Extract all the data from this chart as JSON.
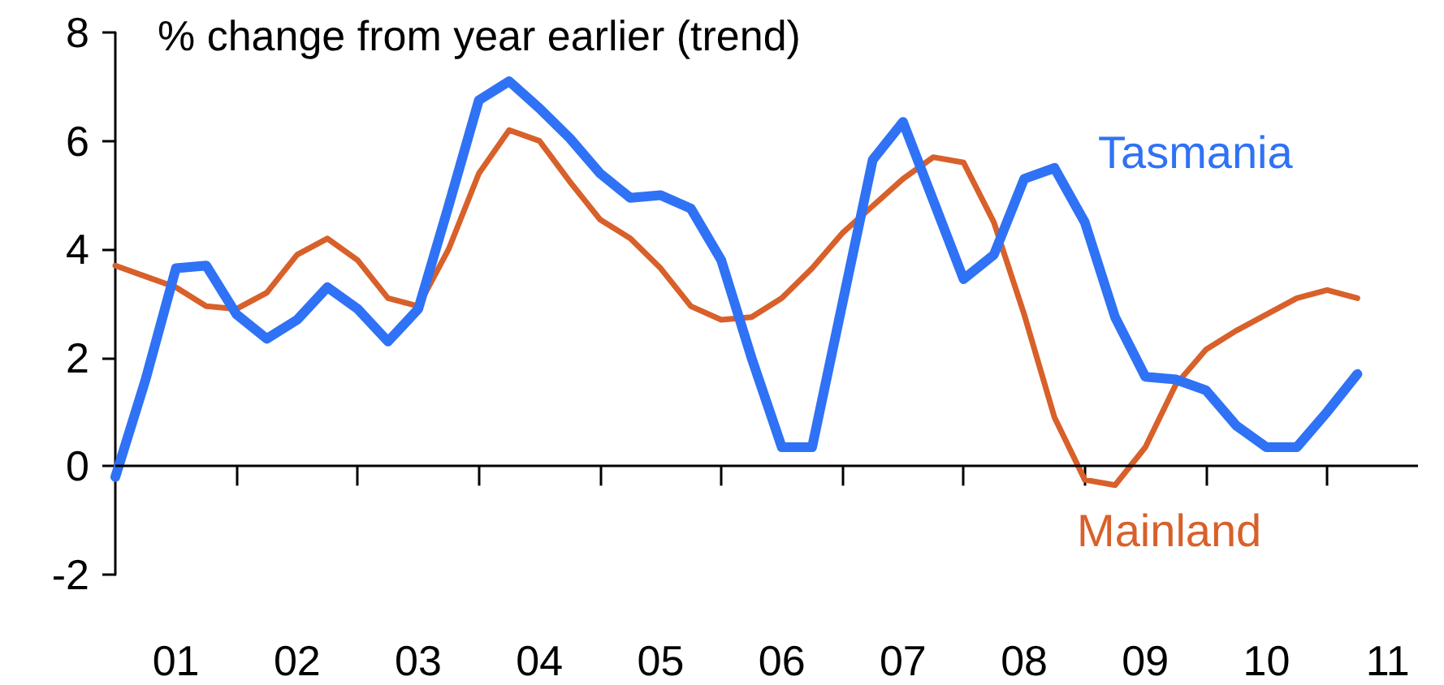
{
  "chart_data": {
    "type": "line",
    "ylabel": "% change from year earlier (trend)",
    "categories": [
      null,
      null,
      "01",
      null,
      null,
      null,
      "02",
      null,
      null,
      null,
      "03",
      null,
      null,
      null,
      "04",
      null,
      null,
      null,
      "05",
      null,
      null,
      null,
      "06",
      null,
      null,
      null,
      "07",
      null,
      null,
      null,
      "08",
      null,
      null,
      null,
      "09",
      null,
      null,
      null,
      "10",
      null,
      null,
      null,
      "11",
      null
    ],
    "series": [
      {
        "name": "Tasmania",
        "color": "#2f72f5",
        "values": [
          -0.2,
          1.6,
          3.65,
          3.7,
          2.8,
          2.35,
          2.7,
          3.3,
          2.9,
          2.3,
          2.9,
          4.8,
          6.75,
          7.1,
          6.6,
          6.05,
          5.4,
          4.95,
          5.0,
          4.75,
          3.8,
          2.0,
          0.35,
          0.35,
          3.0,
          5.65,
          6.35,
          4.9,
          3.45,
          3.9,
          5.3,
          5.5,
          4.5,
          2.75,
          1.65,
          1.6,
          1.4,
          0.75,
          0.35,
          0.35,
          1.0,
          1.7,
          null,
          null
        ]
      },
      {
        "name": "Mainland",
        "color": "#d8602a",
        "values": [
          3.7,
          3.5,
          3.3,
          2.95,
          2.9,
          3.2,
          3.9,
          4.2,
          3.8,
          3.1,
          2.95,
          4.0,
          5.4,
          6.2,
          6.0,
          5.25,
          4.55,
          4.2,
          3.65,
          2.95,
          2.7,
          2.75,
          3.1,
          3.65,
          4.3,
          4.8,
          5.3,
          5.7,
          5.6,
          4.5,
          2.8,
          0.9,
          -0.25,
          -0.35,
          0.35,
          1.5,
          2.15,
          2.5,
          2.8,
          3.1,
          3.25,
          3.1,
          null,
          null
        ]
      }
    ],
    "ylim": [
      -2,
      8
    ],
    "yticks": [
      -2,
      0,
      2,
      4,
      6,
      8
    ],
    "ref_lines": [
      {
        "axis": "y",
        "value": 0,
        "color": "#000000",
        "line_style": "solid"
      }
    ],
    "grid": false,
    "legend": false,
    "marker": "none",
    "line_style": "solid"
  }
}
